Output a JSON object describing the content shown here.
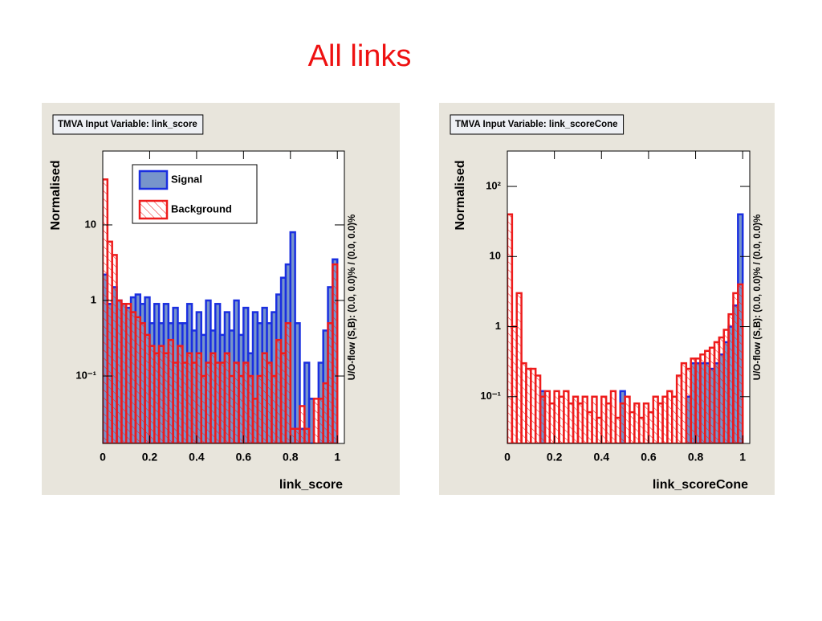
{
  "title": "All links",
  "chart_data": [
    {
      "type": "histogram",
      "title": "TMVA Input Variable: link_score",
      "ylabel": "Normalised",
      "xlabel": "link_score",
      "side_label": "U/O-flow (S,B): (0.0, 0.0)% / (0.0, 0.0)%",
      "log_y": true,
      "legend": "top-left",
      "xlim": [
        0,
        1.03
      ],
      "xticks": [
        0,
        0.2,
        0.4,
        0.6,
        0.8,
        1
      ],
      "ylim": [
        0.0128,
        95
      ],
      "yticks": [
        {
          "value": 0.1,
          "label": "10⁻¹"
        },
        1,
        10
      ],
      "bins": [
        0,
        0.02,
        0.04,
        0.06,
        0.08,
        0.1,
        0.12,
        0.14,
        0.16,
        0.18,
        0.2,
        0.22,
        0.24,
        0.26,
        0.28,
        0.3,
        0.32,
        0.34,
        0.36,
        0.38,
        0.4,
        0.42,
        0.44,
        0.46,
        0.48,
        0.5,
        0.52,
        0.54,
        0.56,
        0.58,
        0.6,
        0.62,
        0.64,
        0.66,
        0.68,
        0.7,
        0.72,
        0.74,
        0.76,
        0.78,
        0.8,
        0.82,
        0.84,
        0.86,
        0.88,
        0.9,
        0.92,
        0.94,
        0.96,
        0.98,
        1
      ],
      "series": [
        {
          "name": "Signal",
          "color": "#1a2fe0",
          "fill": "#7795cb",
          "values": [
            2.2,
            0.9,
            1.5,
            1.0,
            0.9,
            0.8,
            1.1,
            1.2,
            0.9,
            1.1,
            0.5,
            0.9,
            0.5,
            0.9,
            0.5,
            0.8,
            0.5,
            0.5,
            0.9,
            0.4,
            0.7,
            0.35,
            1.0,
            0.4,
            0.9,
            0.35,
            0.7,
            0.4,
            1.0,
            0.35,
            0.8,
            0.2,
            0.7,
            0.5,
            0.8,
            0.5,
            0.7,
            1.2,
            2,
            3,
            8,
            0.5,
            0.02,
            0.15,
            0.05,
            0,
            0.15,
            0.4,
            1.5,
            3.5
          ]
        },
        {
          "name": "Background",
          "color": "#ee1c1c",
          "hatch": true,
          "values": [
            40,
            6,
            4,
            1,
            0.9,
            0.9,
            0.7,
            0.6,
            0.5,
            0.35,
            0.25,
            0.2,
            0.25,
            0.2,
            0.3,
            0.15,
            0.25,
            0.15,
            0.2,
            0.15,
            0.2,
            0.1,
            0.15,
            0.2,
            0.15,
            0.15,
            0.2,
            0.1,
            0.15,
            0.1,
            0.15,
            0.1,
            0.05,
            0.1,
            0.2,
            0.15,
            0.1,
            0.3,
            0.2,
            0.5,
            0.02,
            0.02,
            0.04,
            0.02,
            0.01,
            0.05,
            0.05,
            0.08,
            0.5,
            3
          ]
        }
      ]
    },
    {
      "type": "histogram",
      "title": "TMVA Input Variable: link_scoreCone",
      "ylabel": "Normalised",
      "xlabel": "link_scoreCone",
      "side_label": "U/O-flow (S,B): (0.0, 0.0)% / (0.0, 0.0)%",
      "log_y": true,
      "xlim": [
        0,
        1.03
      ],
      "xticks": [
        0,
        0.2,
        0.4,
        0.6,
        0.8,
        1
      ],
      "ylim": [
        0.0215,
        320
      ],
      "yticks": [
        {
          "value": 0.1,
          "label": "10⁻¹"
        },
        1,
        10,
        {
          "value": 100,
          "label": "10²"
        }
      ],
      "bins": [
        0,
        0.02,
        0.04,
        0.06,
        0.08,
        0.1,
        0.12,
        0.14,
        0.16,
        0.18,
        0.2,
        0.22,
        0.24,
        0.26,
        0.28,
        0.3,
        0.32,
        0.34,
        0.36,
        0.38,
        0.4,
        0.42,
        0.44,
        0.46,
        0.48,
        0.5,
        0.52,
        0.54,
        0.56,
        0.58,
        0.6,
        0.62,
        0.64,
        0.66,
        0.68,
        0.7,
        0.72,
        0.74,
        0.76,
        0.78,
        0.8,
        0.82,
        0.84,
        0.86,
        0.88,
        0.9,
        0.92,
        0.94,
        0.96,
        0.98,
        1
      ],
      "series": [
        {
          "color": "#1a2fe0",
          "fill": "#7795cb",
          "values": [
            0,
            0,
            0,
            0,
            0,
            0,
            0,
            0.12,
            0,
            0,
            0,
            0,
            0,
            0,
            0,
            0,
            0,
            0,
            0,
            0,
            0,
            0,
            0,
            0,
            0.12,
            0,
            0,
            0,
            0,
            0,
            0,
            0,
            0,
            0,
            0,
            0,
            0,
            0,
            0.1,
            0.3,
            0.3,
            0.3,
            0.3,
            0.25,
            0.3,
            0.4,
            0.6,
            1,
            2,
            40
          ]
        },
        {
          "color": "#ee1c1c",
          "hatch": true,
          "values": [
            40,
            1,
            3,
            0.3,
            0.25,
            0.25,
            0.2,
            0.1,
            0.12,
            0.08,
            0.12,
            0.1,
            0.12,
            0.08,
            0.1,
            0.08,
            0.1,
            0.06,
            0.1,
            0.05,
            0.1,
            0.08,
            0.12,
            0.05,
            0.08,
            0.1,
            0.06,
            0.08,
            0.05,
            0.08,
            0.06,
            0.1,
            0.08,
            0.1,
            0.12,
            0.1,
            0.2,
            0.3,
            0.25,
            0.35,
            0.35,
            0.4,
            0.45,
            0.5,
            0.6,
            0.7,
            0.9,
            1.5,
            3,
            4
          ]
        }
      ]
    }
  ]
}
